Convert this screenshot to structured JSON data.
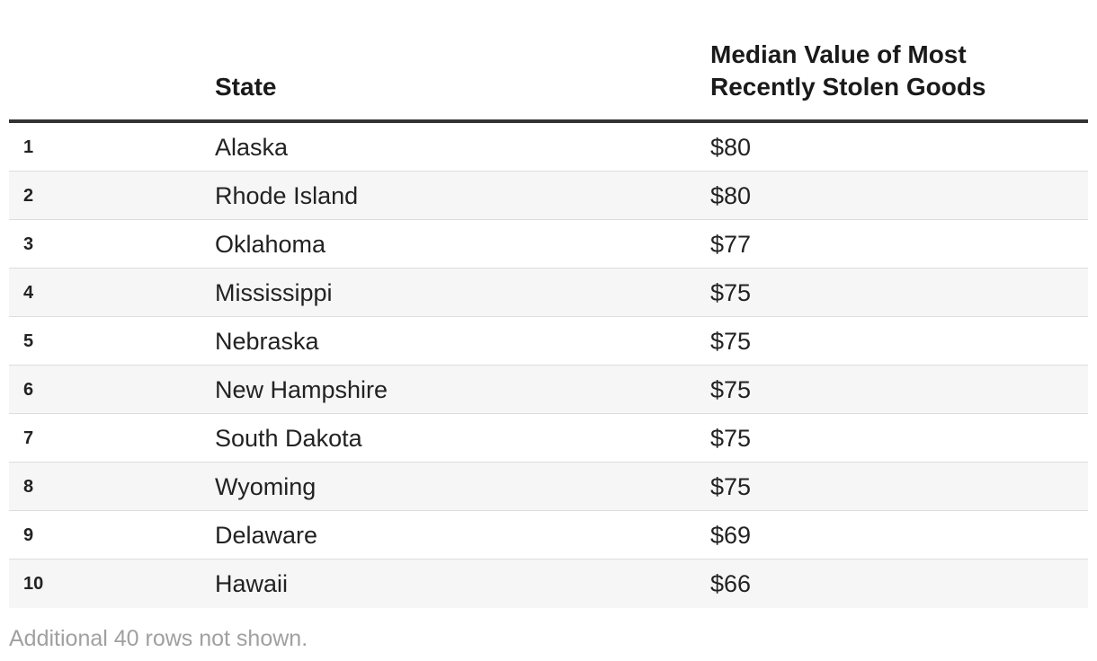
{
  "chart_data": {
    "type": "table",
    "columns": [
      "",
      "State",
      "Median Value of Most Recently Stolen Goods"
    ],
    "rows": [
      {
        "rank": "1",
        "state": "Alaska",
        "value": "$80"
      },
      {
        "rank": "2",
        "state": "Rhode Island",
        "value": "$80"
      },
      {
        "rank": "3",
        "state": "Oklahoma",
        "value": "$77"
      },
      {
        "rank": "4",
        "state": "Mississippi",
        "value": "$75"
      },
      {
        "rank": "5",
        "state": "Nebraska",
        "value": "$75"
      },
      {
        "rank": "6",
        "state": "New Hampshire",
        "value": "$75"
      },
      {
        "rank": "7",
        "state": "South Dakota",
        "value": "$75"
      },
      {
        "rank": "8",
        "state": "Wyoming",
        "value": "$75"
      },
      {
        "rank": "9",
        "state": "Delaware",
        "value": "$69"
      },
      {
        "rank": "10",
        "state": "Hawaii",
        "value": "$66"
      }
    ],
    "footnote": "Additional 40 rows not shown."
  },
  "colors": {
    "header_rule": "#333333",
    "row_alt_background": "#f6f6f6",
    "row_divider": "#dddddd",
    "footnote_text": "#a0a0a0"
  }
}
